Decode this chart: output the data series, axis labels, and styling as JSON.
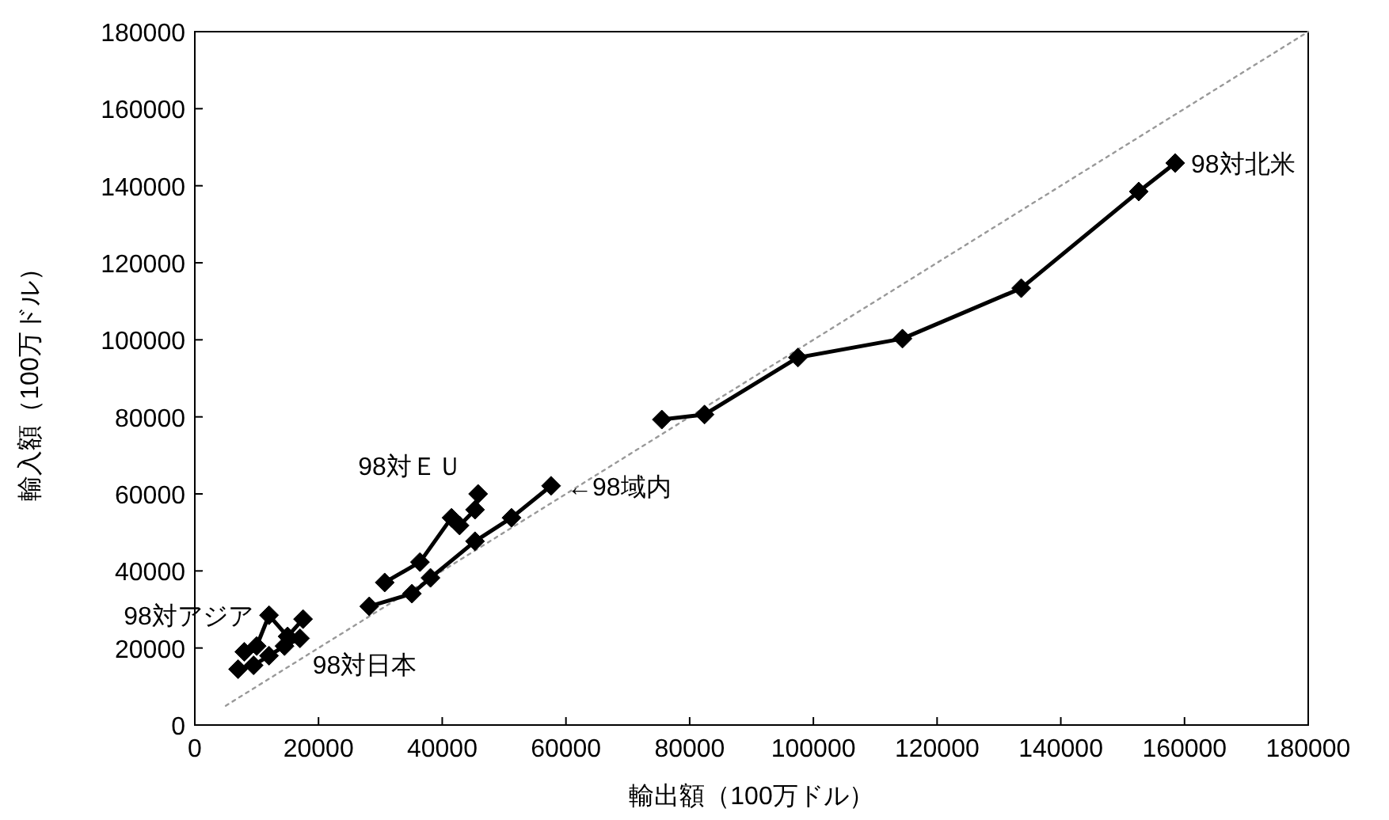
{
  "chart_data": {
    "type": "line",
    "xlabel": "輸出額（100万ドル）",
    "ylabel": "輸入額（100万ドル）",
    "xlim": [
      0,
      180000
    ],
    "ylim": [
      0,
      180000
    ],
    "xticks": [
      0,
      20000,
      40000,
      60000,
      80000,
      100000,
      120000,
      140000,
      160000,
      180000
    ],
    "yticks": [
      0,
      20000,
      40000,
      60000,
      80000,
      100000,
      120000,
      140000,
      160000,
      180000
    ],
    "grid": false,
    "marker": "diamond",
    "line_style": "solid",
    "series": [
      {
        "type": "line",
        "color": "#999999",
        "line_style": "dotted",
        "marker": "none",
        "x": [
          5000,
          180000
        ],
        "values": [
          5000,
          180000
        ]
      },
      {
        "color": "#000000",
        "x": [
          8000,
          10000,
          12000,
          15000,
          17500
        ],
        "values": [
          19000,
          20500,
          28500,
          23000,
          27500
        ]
      },
      {
        "color": "#000000",
        "x": [
          7000,
          9500,
          12000,
          14500,
          17000
        ],
        "values": [
          14500,
          15500,
          18000,
          20500,
          22500
        ]
      },
      {
        "color": "#000000",
        "x": [
          30700,
          36400,
          41500,
          42800,
          45300,
          45800
        ],
        "values": [
          37000,
          42300,
          53800,
          51800,
          55900,
          60000
        ]
      },
      {
        "color": "#000000",
        "x": [
          28200,
          35100,
          38100,
          45300,
          51200,
          57600
        ],
        "values": [
          30800,
          34100,
          38200,
          47700,
          53800,
          62100
        ]
      },
      {
        "color": "#000000",
        "x": [
          75500,
          82400,
          97500,
          114400,
          133600,
          152600,
          158500
        ],
        "values": [
          79300,
          80600,
          95400,
          100300,
          113400,
          138500,
          145900
        ]
      }
    ],
    "annotations": [
      {
        "text": "98対北米",
        "x": 158500,
        "y": 145900
      },
      {
        "text": "←98域内",
        "x": 57600,
        "y": 62100
      },
      {
        "text": "98対ＥＵ",
        "x": 45800,
        "y": 60000
      },
      {
        "text": "98対アジア",
        "x": 12000,
        "y": 28500
      },
      {
        "text": "98対日本",
        "x": 17000,
        "y": 22500
      }
    ]
  }
}
